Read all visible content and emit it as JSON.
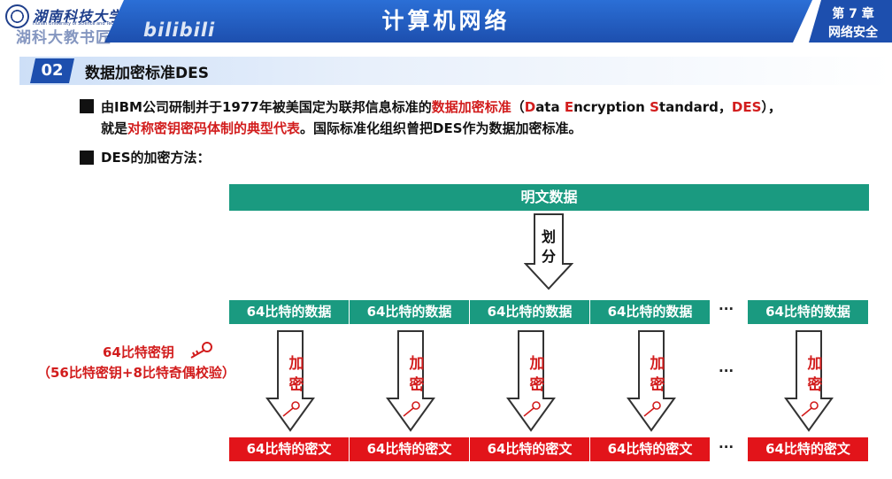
{
  "header": {
    "logo_text": "湖南科技大学",
    "logo_subtext": "Hunan University of Science and Technology",
    "watermark": "湖科大教书匠",
    "watermark_brand": "bilibili",
    "title": "计算机网络",
    "chapter": "第 7 章",
    "chapter_topic": "网络安全"
  },
  "section": {
    "number": "02",
    "title": "数据加密标准DES"
  },
  "paragraph1": {
    "p1": "由IBM公司研制并于1977年被美国定为联邦信息标准的",
    "p2": "数据加密标准",
    "p3": "（",
    "p4": "D",
    "p5": "ata ",
    "p6": "E",
    "p7": "ncryption ",
    "p8": "S",
    "p9": "tandard，",
    "p10": "DES",
    "p11": "），",
    "l2a": "就是",
    "l2b": "对称密钥密码体制的典型代表",
    "l2c": "。国际标准化组织曾把DES作为数据加密标准。"
  },
  "paragraph2": "DES的加密方法：",
  "diagram": {
    "plaintext": "明文数据",
    "split_1": "划",
    "split_2": "分",
    "block_label": "64比特的数据",
    "cipher_label": "64比特的密文",
    "encrypt_1": "加",
    "encrypt_2": "密",
    "ellipsis": "···",
    "key_line1": "64比特密钥",
    "key_line2": "（56比特密钥+8比特奇偶校验）"
  },
  "colors": {
    "header_blue": "#1d4fae",
    "teal": "#1a9a80",
    "red": "#e2141a",
    "highlight_red": "#d21d1d"
  }
}
